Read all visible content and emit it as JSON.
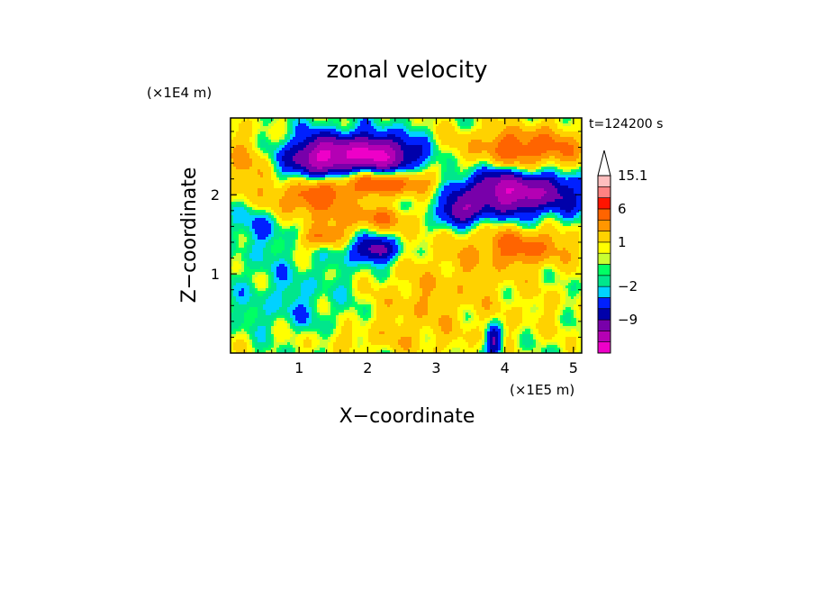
{
  "chart_data": {
    "type": "heatmap",
    "title": "zonal velocity",
    "xlabel": "X−coordinate",
    "ylabel": "Z−coordinate",
    "x_unit": "(×1E5 m)",
    "y_unit": "(×1E4 m)",
    "time_label": "t=124200 s",
    "xlim": [
      0,
      5.12
    ],
    "ylim": [
      0,
      2.97
    ],
    "x_ticks": [
      "1",
      "2",
      "3",
      "4",
      "5"
    ],
    "x_tick_values": [
      1,
      2,
      3,
      4,
      5
    ],
    "y_ticks": [
      "1",
      "2"
    ],
    "y_tick_values": [
      1,
      2
    ],
    "colorbar": {
      "tick_labels": [
        "15.1",
        "6",
        "1",
        "−2",
        "−9"
      ],
      "tick_values": [
        15.1,
        6,
        1,
        -2,
        -9
      ],
      "bins": [
        -15,
        -12,
        -9,
        -6,
        -4,
        -2,
        -1,
        0,
        0.5,
        1,
        2,
        4,
        6,
        9,
        12,
        15.1
      ],
      "colors": [
        "#ee00c8",
        "#b400b4",
        "#7800aa",
        "#0000aa",
        "#0020ff",
        "#00d2ff",
        "#00e68c",
        "#00ff64",
        "#c8ff32",
        "#ffff00",
        "#ffd200",
        "#ff9600",
        "#ff6400",
        "#ff1400",
        "#ff8282",
        "#ffbebe"
      ],
      "extend": "max"
    },
    "features": [
      {
        "x": 2.0,
        "z": 2.5,
        "sx": 0.6,
        "sz": 0.18,
        "v": -13
      },
      {
        "x": 1.2,
        "z": 2.45,
        "sx": 0.3,
        "sz": 0.2,
        "v": -6
      },
      {
        "x": 2.2,
        "z": 2.15,
        "sx": 0.6,
        "sz": 0.12,
        "v": 9
      },
      {
        "x": 1.1,
        "z": 1.95,
        "sx": 0.4,
        "sz": 0.15,
        "v": 7
      },
      {
        "x": 2.0,
        "z": 1.7,
        "sx": 0.55,
        "sz": 0.12,
        "v": 5
      },
      {
        "x": 2.1,
        "z": 1.3,
        "sx": 0.25,
        "sz": 0.12,
        "v": -8
      },
      {
        "x": 1.3,
        "z": 1.45,
        "sx": 0.2,
        "sz": 0.1,
        "v": 6
      },
      {
        "x": 0.35,
        "z": 1.7,
        "sx": 0.35,
        "sz": 0.25,
        "v": -3
      },
      {
        "x": 0.9,
        "z": 0.6,
        "sx": 0.5,
        "sz": 0.4,
        "v": -1.5
      },
      {
        "x": 2.6,
        "z": 0.55,
        "sx": 0.5,
        "sz": 0.3,
        "v": 2
      },
      {
        "x": 3.3,
        "z": 1.0,
        "sx": 0.7,
        "sz": 0.5,
        "v": 2.5
      },
      {
        "x": 4.1,
        "z": 2.05,
        "sx": 0.65,
        "sz": 0.22,
        "v": -12
      },
      {
        "x": 4.3,
        "z": 2.55,
        "sx": 0.65,
        "sz": 0.22,
        "v": 8
      },
      {
        "x": 3.3,
        "z": 1.75,
        "sx": 0.22,
        "sz": 0.12,
        "v": -7
      },
      {
        "x": 4.3,
        "z": 1.35,
        "sx": 0.5,
        "sz": 0.18,
        "v": 6
      },
      {
        "x": 3.85,
        "z": 0.15,
        "sx": 0.08,
        "sz": 0.15,
        "v": -8
      },
      {
        "x": 4.6,
        "z": 0.5,
        "sx": 0.6,
        "sz": 0.35,
        "v": 1.2
      },
      {
        "x": 1.8,
        "z": 0.15,
        "sx": 1.2,
        "sz": 0.15,
        "v": 1.8
      },
      {
        "x": 3.0,
        "z": 2.5,
        "sx": 0.25,
        "sz": 0.3,
        "v": 2
      },
      {
        "x": 0.2,
        "z": 2.3,
        "sx": 0.3,
        "sz": 0.4,
        "v": 4
      }
    ]
  }
}
